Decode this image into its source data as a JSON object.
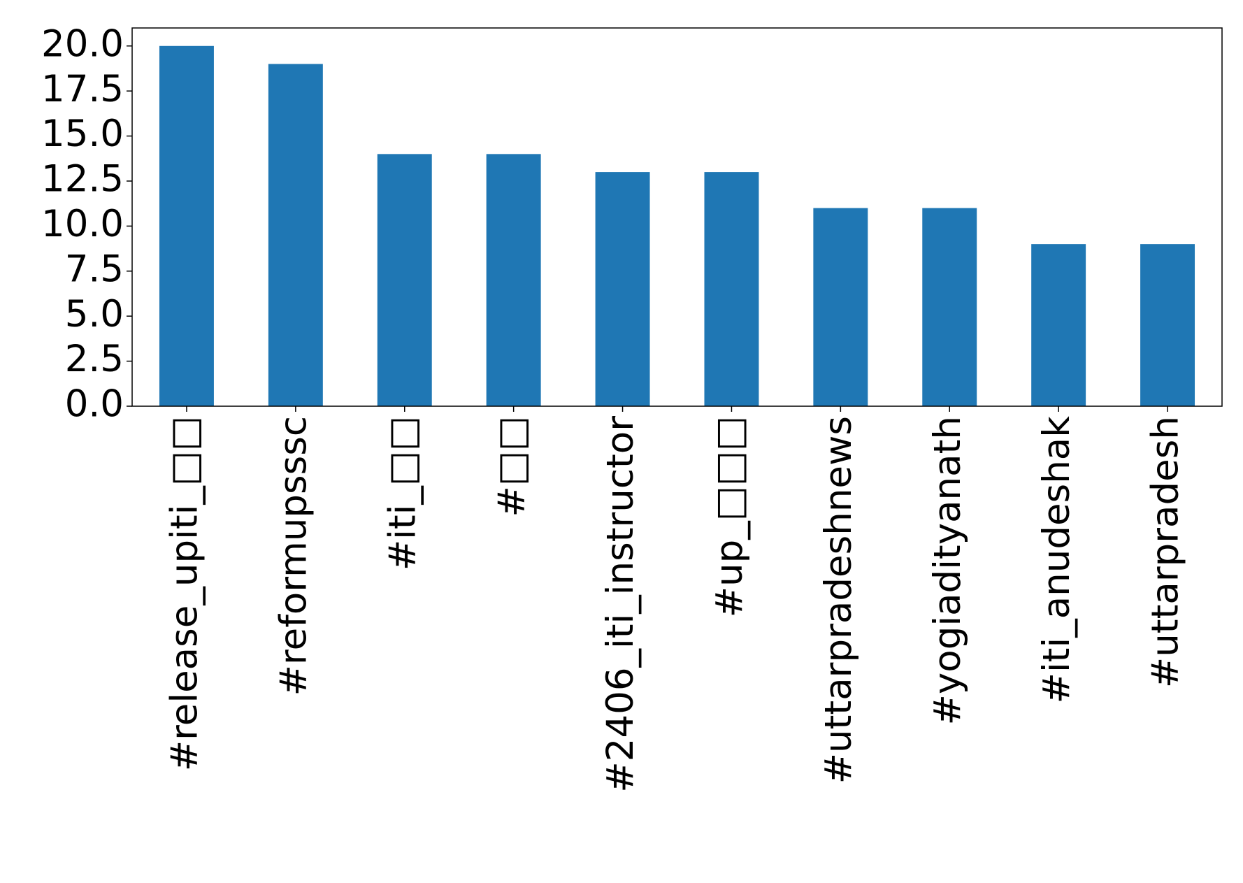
{
  "chart_data": {
    "type": "bar",
    "categories": [
      "#release_upiti_□□",
      "#reformupsssc",
      "#iti_□□",
      "#□□",
      "#2406_iti_instructor",
      "#up_□□□",
      "#uttarpradeshnews",
      "#yogiadityanath",
      "#iti_anudeshak",
      "#uttarpradesh"
    ],
    "values": [
      20,
      19,
      14,
      14,
      13,
      13,
      11,
      11,
      9,
      9
    ],
    "color": "#1f77b4",
    "ylim": [
      0,
      21
    ],
    "yticks": [
      {
        "value": 0,
        "label": "0.0"
      },
      {
        "value": 2.5,
        "label": "2.5"
      },
      {
        "value": 5,
        "label": "5.0"
      },
      {
        "value": 7.5,
        "label": "7.5"
      },
      {
        "value": 10,
        "label": "10.0"
      },
      {
        "value": 12.5,
        "label": "12.5"
      },
      {
        "value": 15,
        "label": "15.0"
      },
      {
        "value": 17.5,
        "label": "17.5"
      },
      {
        "value": 20,
        "label": "20.0"
      }
    ],
    "grid": false
  }
}
